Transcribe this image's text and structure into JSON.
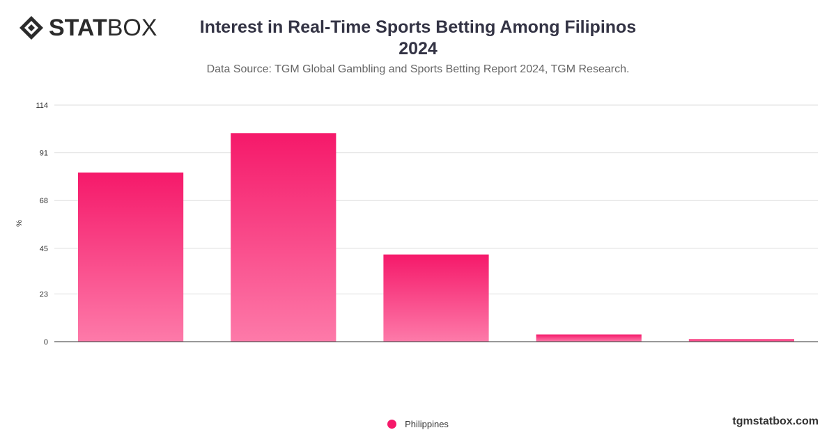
{
  "brand": {
    "logo_bold": "STAT",
    "logo_light": "BOX",
    "site": "tgmstatbox.com"
  },
  "colors": {
    "bar_top": "#f5196a",
    "bar_bottom": "#fd7aa9",
    "grid": "#dddddd",
    "axis": "#333333",
    "text": "#333333"
  },
  "chart_data": {
    "type": "bar",
    "title": "Interest in Real-Time Sports Betting Among Filipinos",
    "title_line2": "2024",
    "subtitle": "Data Source: TGM Global Gambling and Sports Betting Report 2024, TGM Research.",
    "ylabel": "%",
    "xlabel": "",
    "ylim": [
      0,
      114
    ],
    "yticks": [
      0,
      23,
      45,
      68,
      91,
      114
    ],
    "grid": true,
    "legend_position": "bottom-center",
    "categories": [
      "",
      "",
      "",
      "",
      ""
    ],
    "series": [
      {
        "name": "Philippines",
        "values": [
          81.5,
          100.5,
          42,
          3.5,
          1.2
        ]
      }
    ]
  }
}
